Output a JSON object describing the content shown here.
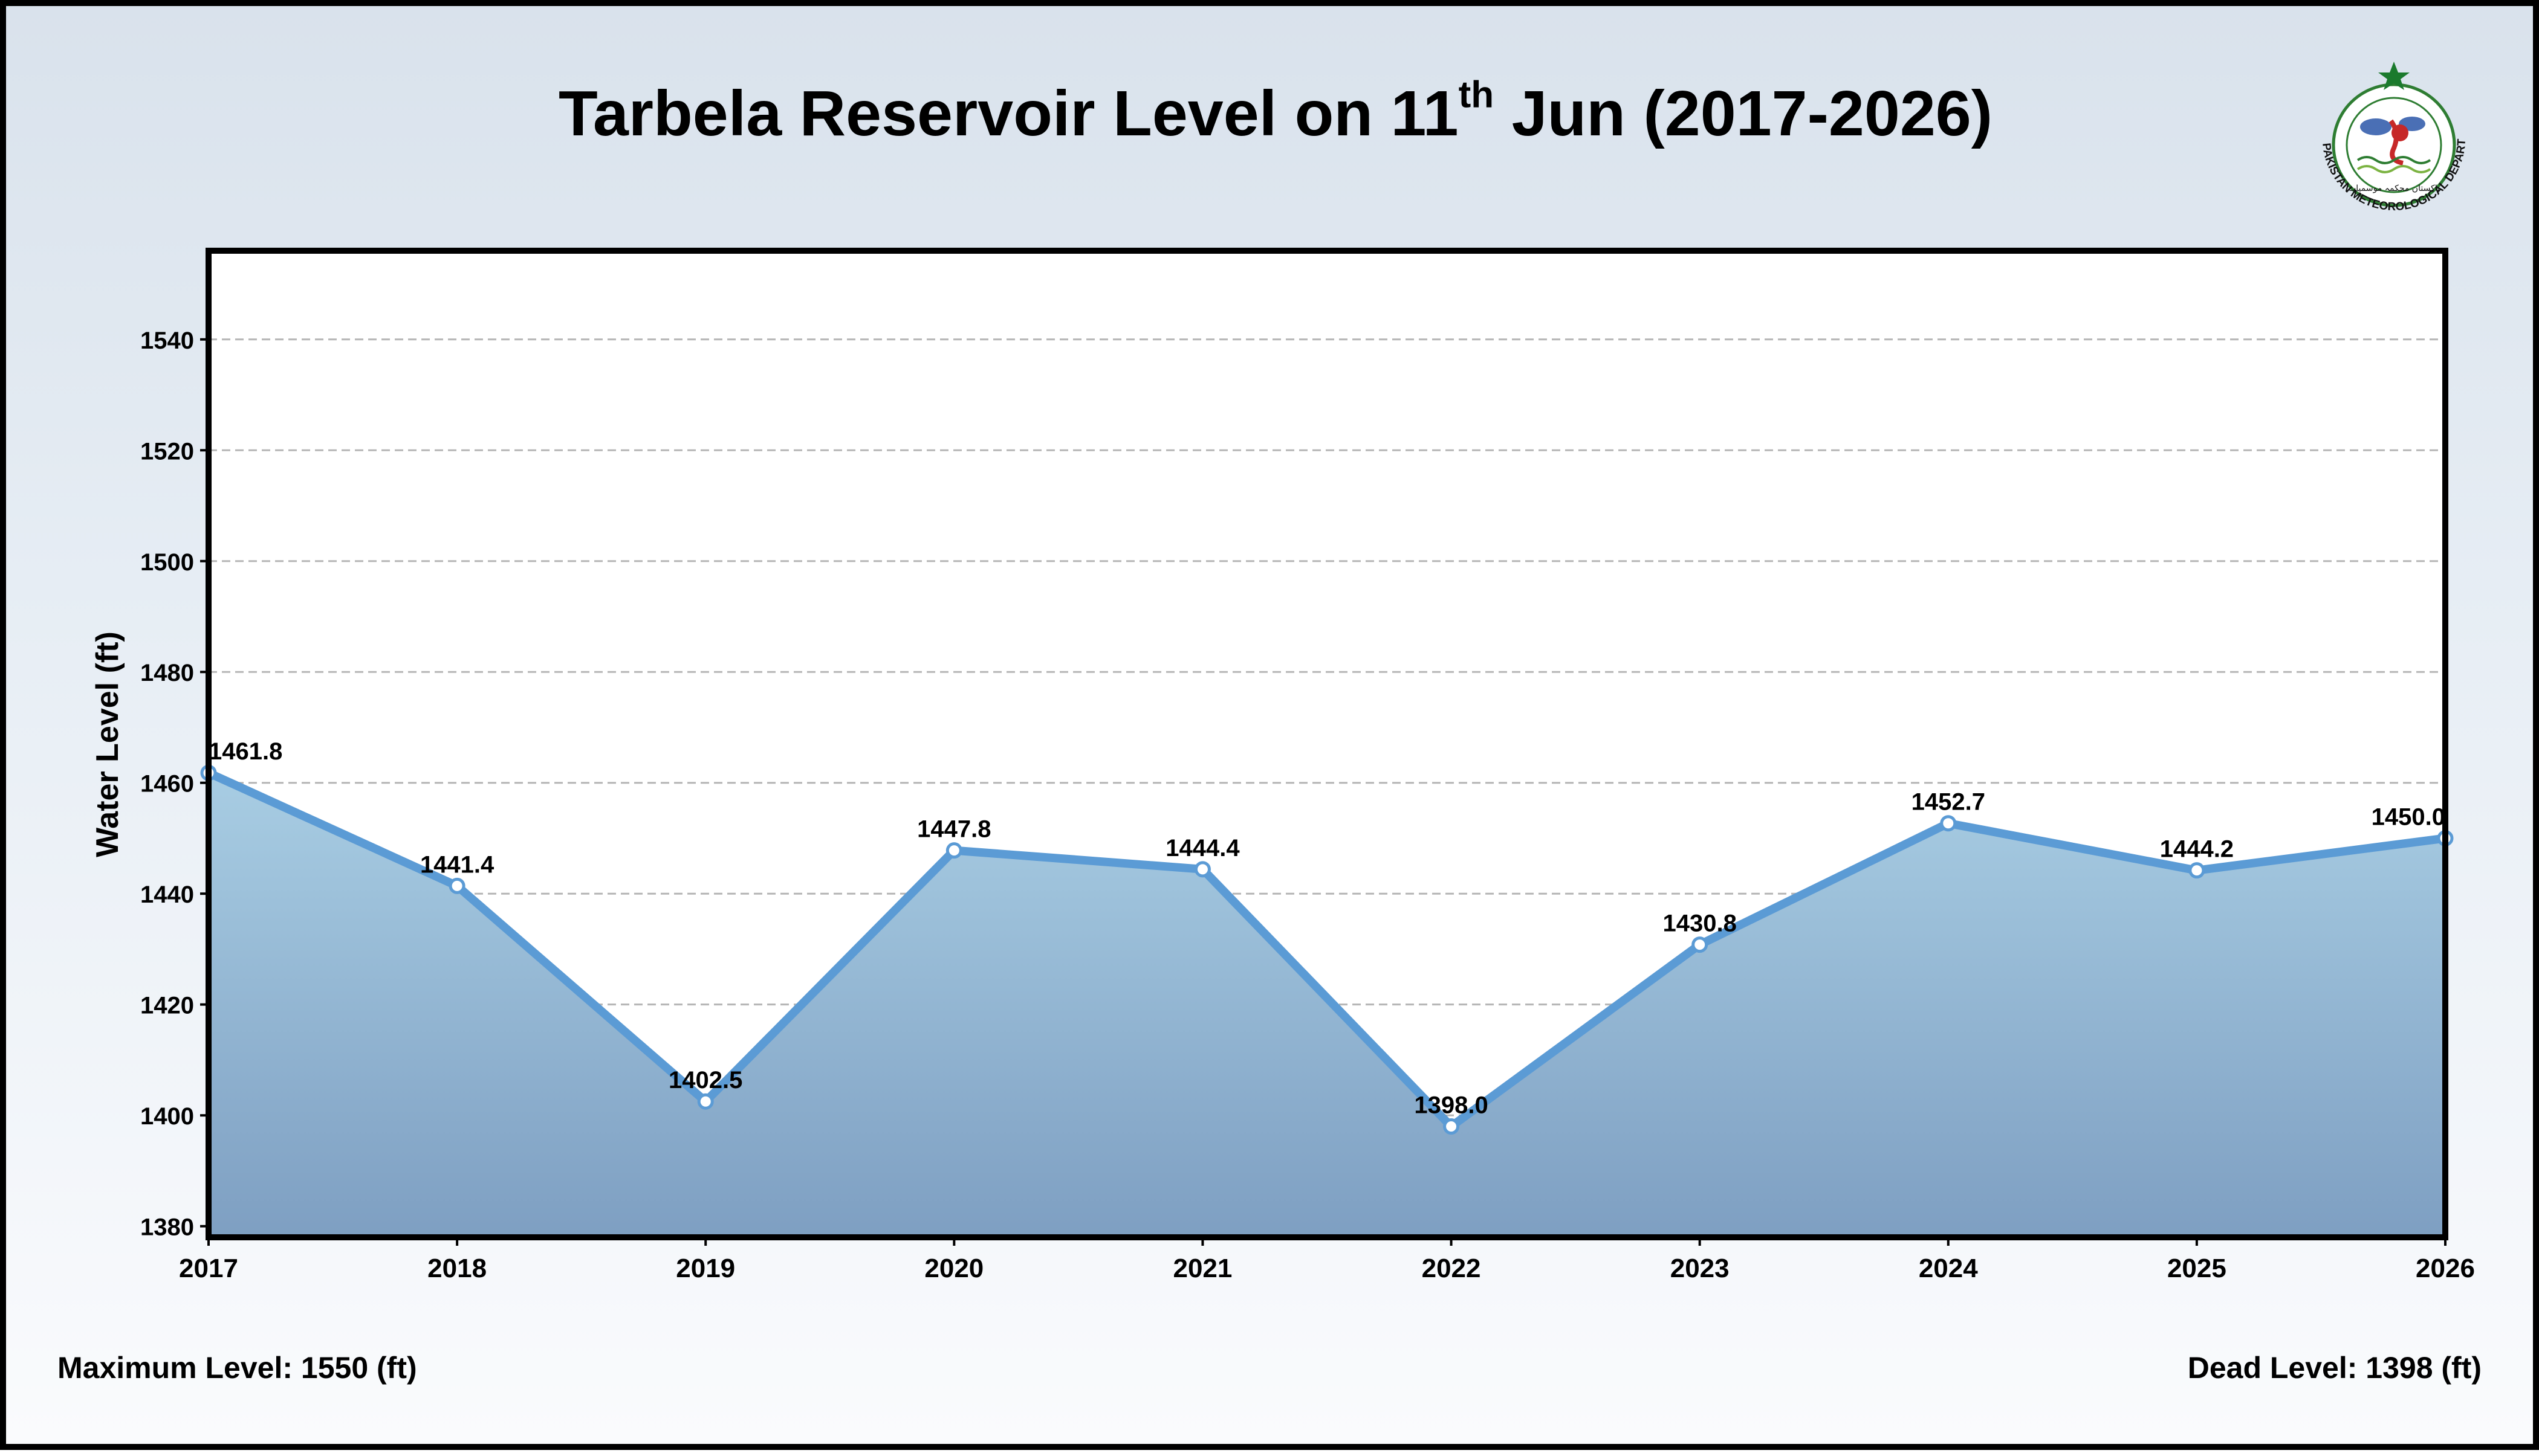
{
  "title": {
    "prefix": "Tarbela Reservoir Level on 11",
    "superscript": "th",
    "suffix": " Jun (2017-2026)"
  },
  "logo": {
    "org_text": "PAKISTAN METEOROLOGICAL DEPARTMENT",
    "urdu_text": "پاکستان محکمہ موسمیات",
    "icon": "pmd-seal-icon"
  },
  "footer": {
    "max_level": "Maximum Level: 1550 (ft)",
    "dead_level": "Dead Level: 1398 (ft)"
  },
  "colors": {
    "line": "#5b9bd5",
    "fill_top": "#a8cde3",
    "fill_bottom": "#7e9fc2",
    "grid": "#b5b5b5",
    "frame": "#000000"
  },
  "chart_data": {
    "type": "area",
    "title": "Tarbela Reservoir Level on 11th Jun (2017-2026)",
    "xlabel": "",
    "ylabel": "Water Level (ft)",
    "categories": [
      "2017",
      "2018",
      "2019",
      "2020",
      "2021",
      "2022",
      "2023",
      "2024",
      "2025",
      "2026"
    ],
    "values": [
      1461.8,
      1441.4,
      1402.5,
      1447.8,
      1444.4,
      1398.0,
      1430.8,
      1452.7,
      1444.2,
      1450.0
    ],
    "data_labels": [
      "1461.8",
      "1441.4",
      "1402.5",
      "1447.8",
      "1444.4",
      "1398.0",
      "1430.8",
      "1452.7",
      "1444.2",
      "1450.0"
    ],
    "ylim": [
      1378,
      1556
    ],
    "yticks": [
      1380,
      1400,
      1420,
      1440,
      1460,
      1480,
      1500,
      1520,
      1540
    ],
    "grid": true,
    "legend": "none"
  }
}
